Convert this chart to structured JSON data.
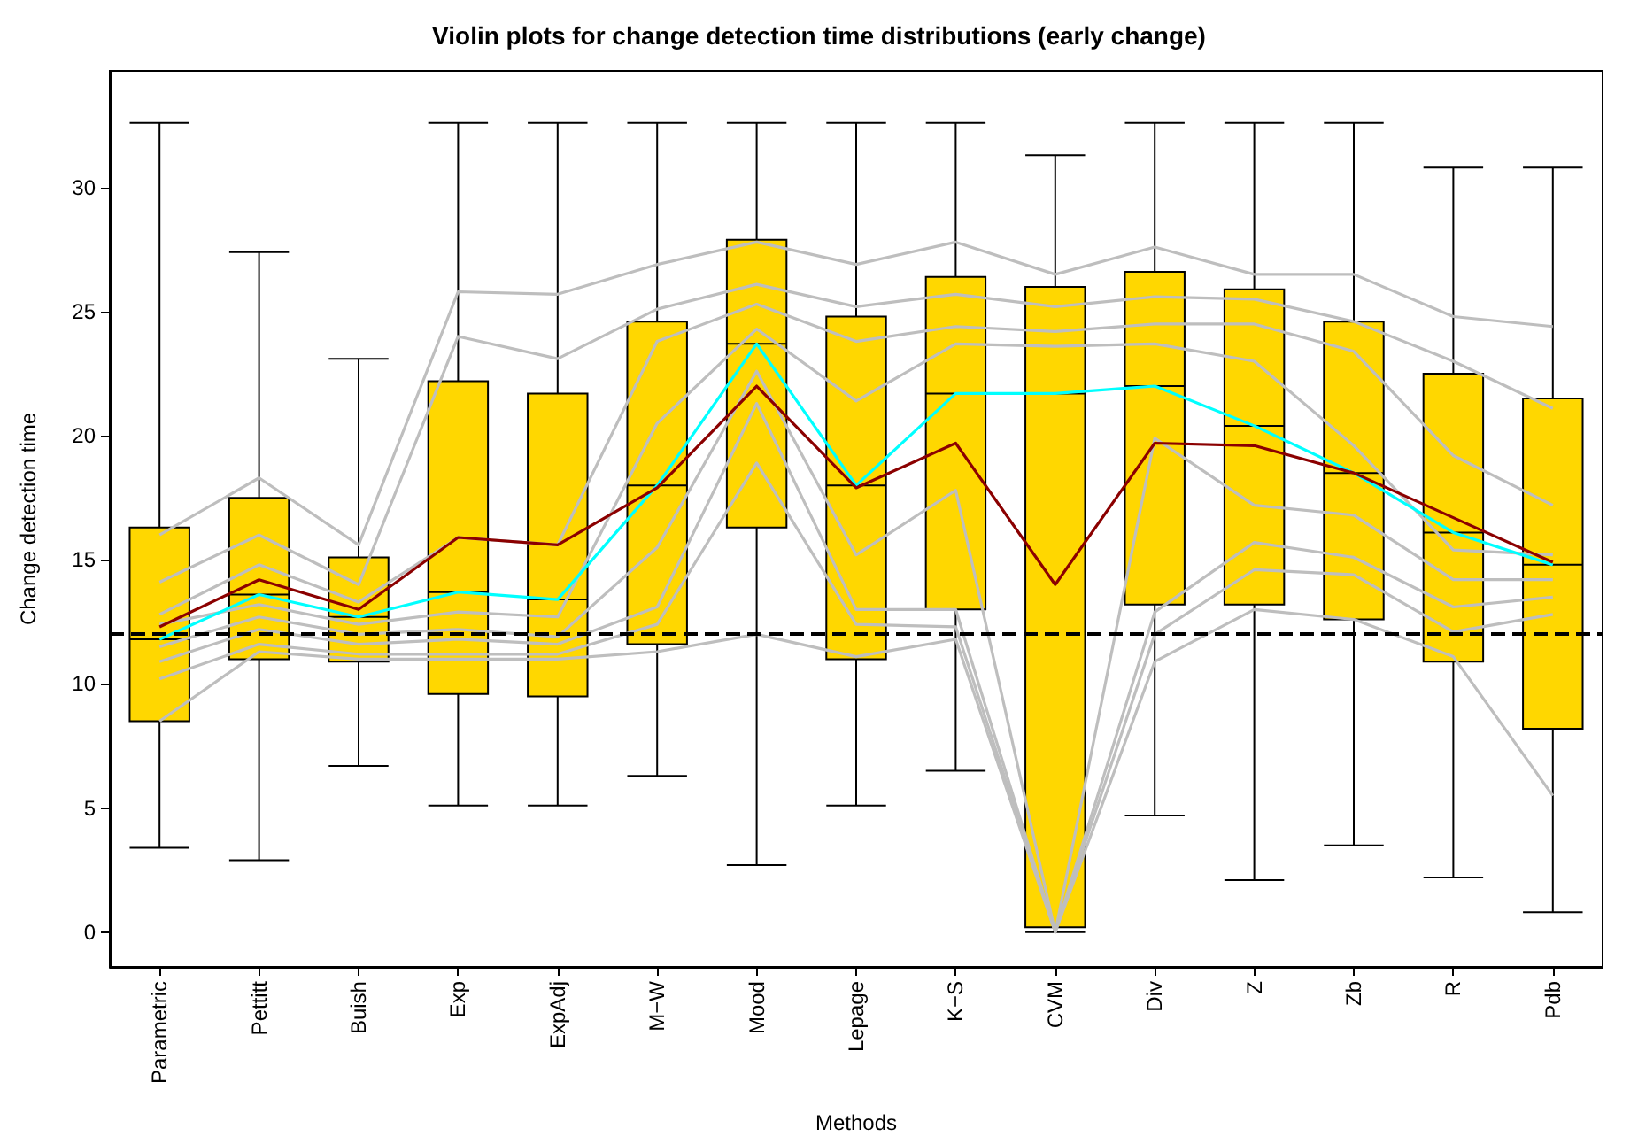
{
  "chart_data": {
    "type": "box",
    "title": "Violin plots for change detection time distributions (early change)",
    "xlabel": "Methods",
    "ylabel": "Change detection time",
    "categories": [
      "Parametric",
      "Pettitt",
      "Buish",
      "Exp",
      "ExpAdj",
      "M−W",
      "Mood",
      "Lepage",
      "K−S",
      "CVM",
      "Div",
      "Z",
      "Zb",
      "R",
      "Pdb"
    ],
    "ylim": [
      -1.4,
      34.7
    ],
    "yticks": [
      0,
      5,
      10,
      15,
      20,
      25,
      30
    ],
    "grid": false,
    "series": [
      {
        "type": "box",
        "color": "#ffd700",
        "boxes": [
          {
            "low": 3.4,
            "q1": 8.5,
            "median": 11.8,
            "q3": 16.3,
            "high": 32.6
          },
          {
            "low": 2.9,
            "q1": 11.0,
            "median": 13.6,
            "q3": 17.5,
            "high": 27.4
          },
          {
            "low": 6.7,
            "q1": 10.9,
            "median": 12.7,
            "q3": 15.1,
            "high": 23.1
          },
          {
            "low": 5.1,
            "q1": 9.6,
            "median": 13.7,
            "q3": 22.2,
            "high": 32.6
          },
          {
            "low": 5.1,
            "q1": 9.5,
            "median": 13.4,
            "q3": 21.7,
            "high": 32.6
          },
          {
            "low": 6.3,
            "q1": 11.6,
            "median": 18.0,
            "q3": 24.6,
            "high": 32.6
          },
          {
            "low": 2.7,
            "q1": 16.3,
            "median": 23.7,
            "q3": 27.9,
            "high": 32.6
          },
          {
            "low": 5.1,
            "q1": 11.0,
            "median": 18.0,
            "q3": 24.8,
            "high": 32.6
          },
          {
            "low": 6.5,
            "q1": 13.0,
            "median": 21.7,
            "q3": 26.4,
            "high": 32.6
          },
          {
            "low": 0,
            "q1": 0.2,
            "median": 21.7,
            "q3": 26.0,
            "high": 31.3
          },
          {
            "low": 4.7,
            "q1": 13.2,
            "median": 22.0,
            "q3": 26.6,
            "high": 32.6
          },
          {
            "low": 2.1,
            "q1": 13.2,
            "median": 20.4,
            "q3": 25.9,
            "high": 32.6
          },
          {
            "low": 3.5,
            "q1": 12.6,
            "median": 18.5,
            "q3": 24.6,
            "high": 32.6
          },
          {
            "low": 2.2,
            "q1": 10.9,
            "median": 16.1,
            "q3": 22.5,
            "high": 30.8
          },
          {
            "low": 0.8,
            "q1": 8.2,
            "median": 14.8,
            "q3": 21.5,
            "high": 30.8
          }
        ]
      },
      {
        "type": "line",
        "color": "#bebebe",
        "values": [
          16.0,
          18.3,
          15.6,
          25.8,
          25.7,
          26.9,
          27.8,
          26.9,
          27.8,
          26.5,
          27.6,
          26.5,
          26.5,
          24.8,
          24.4
        ]
      },
      {
        "type": "line",
        "color": "#bebebe",
        "values": [
          14.1,
          16.0,
          14.0,
          24.0,
          23.1,
          25.1,
          26.1,
          25.2,
          25.7,
          25.2,
          25.6,
          25.5,
          24.6,
          23.0,
          21.1
        ]
      },
      {
        "type": "line",
        "color": "#bebebe",
        "values": [
          12.8,
          14.8,
          13.3,
          15.9,
          15.6,
          23.8,
          25.3,
          23.8,
          24.4,
          24.2,
          24.5,
          24.5,
          23.4,
          19.2,
          17.2
        ]
      },
      {
        "type": "line",
        "color": "#bebebe",
        "values": [
          12.4,
          13.2,
          12.4,
          12.9,
          12.7,
          20.5,
          24.3,
          21.4,
          23.7,
          23.6,
          23.7,
          23.0,
          19.6,
          15.4,
          15.2
        ]
      },
      {
        "type": "line",
        "color": "#bebebe",
        "values": [
          11.5,
          12.7,
          12.0,
          12.2,
          11.9,
          15.5,
          22.6,
          15.2,
          17.8,
          0,
          19.9,
          17.2,
          16.8,
          14.2,
          14.2
        ]
      },
      {
        "type": "line",
        "color": "#bebebe",
        "values": [
          10.9,
          12.2,
          11.6,
          11.8,
          11.6,
          13.1,
          21.3,
          13.0,
          13.0,
          0,
          12.9,
          15.7,
          15.1,
          13.1,
          13.5
        ]
      },
      {
        "type": "line",
        "color": "#bebebe",
        "values": [
          10.2,
          11.6,
          11.2,
          11.2,
          11.2,
          12.4,
          18.9,
          12.4,
          12.3,
          0,
          12.0,
          14.6,
          14.4,
          12.1,
          12.8
        ]
      },
      {
        "type": "line",
        "color": "#bebebe",
        "values": [
          8.5,
          11.3,
          11.0,
          11.0,
          11.0,
          11.3,
          12.0,
          11.1,
          11.8,
          0,
          10.9,
          13.0,
          12.6,
          11.1,
          5.5
        ]
      },
      {
        "type": "line",
        "color": "#00ffff",
        "values": [
          11.8,
          13.6,
          12.7,
          13.7,
          13.4,
          18.0,
          23.7,
          18.0,
          21.7,
          21.7,
          22.0,
          20.4,
          18.5,
          16.1,
          14.8
        ]
      },
      {
        "type": "line",
        "color": "#8b0000",
        "values": [
          12.3,
          14.2,
          13.0,
          15.9,
          15.6,
          17.9,
          22.0,
          17.9,
          19.7,
          14.0,
          19.7,
          19.6,
          18.5,
          16.7,
          14.9
        ]
      }
    ],
    "ref_lines": [
      {
        "axis": "y",
        "value": 12,
        "color": "#000000",
        "line_style": "dashed"
      }
    ]
  }
}
